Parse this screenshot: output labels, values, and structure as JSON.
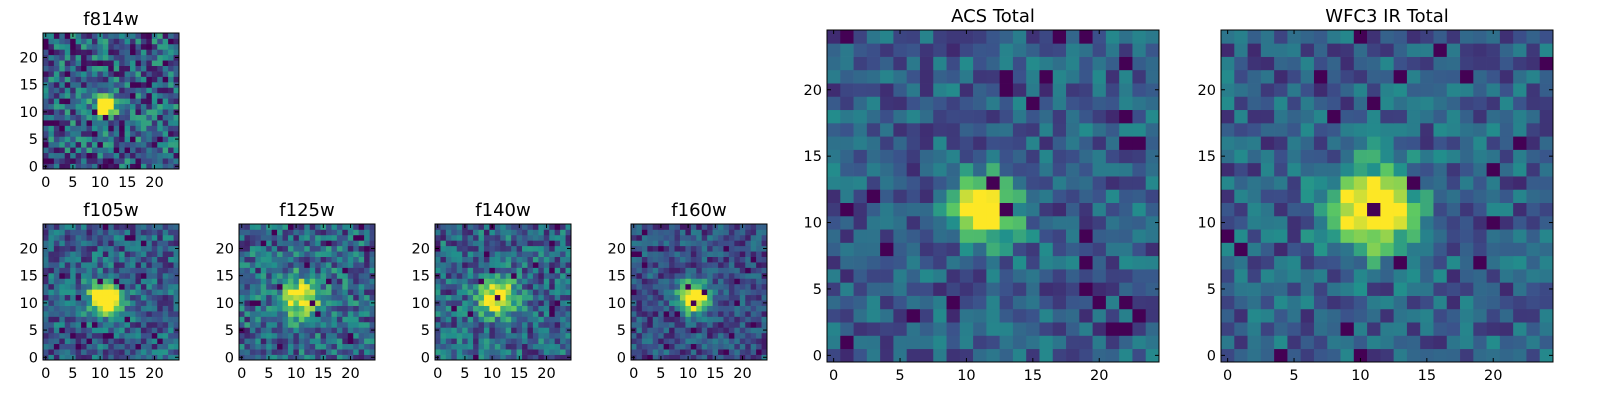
{
  "chart_data": [
    {
      "type": "heatmap",
      "title": "f814w",
      "size": 25,
      "seed": 11,
      "peak": [
        11,
        11
      ],
      "sigma": 1.4,
      "amp": 1.0,
      "noise": 0.3,
      "base": 0.55,
      "dark_frac": 0.05,
      "xticks": [
        "0",
        "5",
        "10",
        "15",
        "20"
      ],
      "yticks": [
        "0",
        "5",
        "10",
        "15",
        "20"
      ],
      "xlim": [
        -0.5,
        24.5
      ],
      "ylim": [
        -0.5,
        24.5
      ]
    },
    {
      "type": "heatmap",
      "title": "f105w",
      "size": 25,
      "seed": 22,
      "peak": [
        11,
        11
      ],
      "sigma": 2.2,
      "amp": 0.9,
      "noise": 0.22,
      "base": 0.55,
      "dark_frac": 0.02,
      "xticks": [
        "0",
        "5",
        "10",
        "15",
        "20"
      ],
      "yticks": [
        "0",
        "5",
        "10",
        "15",
        "20"
      ],
      "xlim": [
        -0.5,
        24.5
      ],
      "ylim": [
        -0.5,
        24.5
      ]
    },
    {
      "type": "heatmap",
      "title": "f125w",
      "size": 25,
      "seed": 33,
      "peak": [
        11,
        11
      ],
      "sigma": 2.5,
      "amp": 0.7,
      "noise": 0.25,
      "base": 0.62,
      "dark_frac": 0.03,
      "xticks": [
        "0",
        "5",
        "10",
        "15",
        "20"
      ],
      "yticks": [
        "0",
        "5",
        "10",
        "15",
        "20"
      ],
      "xlim": [
        -0.5,
        24.5
      ],
      "ylim": [
        -0.5,
        24.5
      ]
    },
    {
      "type": "heatmap",
      "title": "f140w",
      "size": 25,
      "seed": 44,
      "peak": [
        11,
        11
      ],
      "sigma": 2.4,
      "amp": 0.8,
      "noise": 0.24,
      "base": 0.58,
      "dark_frac": 0.03,
      "xticks": [
        "0",
        "5",
        "10",
        "15",
        "20"
      ],
      "yticks": [
        "0",
        "5",
        "10",
        "15",
        "20"
      ],
      "xlim": [
        -0.5,
        24.5
      ],
      "ylim": [
        -0.5,
        24.5
      ]
    },
    {
      "type": "heatmap",
      "title": "f160w",
      "size": 25,
      "seed": 55,
      "peak": [
        11,
        11
      ],
      "sigma": 2.0,
      "amp": 1.0,
      "noise": 0.18,
      "base": 0.45,
      "dark_frac": 0.04,
      "xticks": [
        "0",
        "5",
        "10",
        "15",
        "20"
      ],
      "yticks": [
        "0",
        "5",
        "10",
        "15",
        "20"
      ],
      "xlim": [
        -0.5,
        24.5
      ],
      "ylim": [
        -0.5,
        24.5
      ]
    },
    {
      "type": "heatmap",
      "title": "ACS Total",
      "size": 25,
      "seed": 66,
      "peak": [
        11.5,
        11
      ],
      "sigma": 1.6,
      "amp": 1.0,
      "noise": 0.18,
      "base": 0.55,
      "dark_frac": 0.05,
      "xticks": [
        "0",
        "5",
        "10",
        "15",
        "20"
      ],
      "yticks": [
        "0",
        "5",
        "10",
        "15",
        "20"
      ],
      "xlim": [
        -0.5,
        24.5
      ],
      "ylim": [
        -0.5,
        24.5
      ]
    },
    {
      "type": "heatmap",
      "title": "WFC3 IR Total",
      "size": 25,
      "seed": 77,
      "peak": [
        11,
        11
      ],
      "sigma": 2.2,
      "amp": 0.95,
      "noise": 0.18,
      "base": 0.55,
      "dark_frac": 0.04,
      "xticks": [
        "0",
        "5",
        "10",
        "15",
        "20"
      ],
      "yticks": [
        "0",
        "5",
        "10",
        "15",
        "20"
      ],
      "xlim": [
        -0.5,
        24.5
      ],
      "ylim": [
        -0.5,
        24.5
      ]
    }
  ],
  "colormap": [
    "#440154",
    "#3b528b",
    "#21918c",
    "#5ec962",
    "#fde725"
  ]
}
